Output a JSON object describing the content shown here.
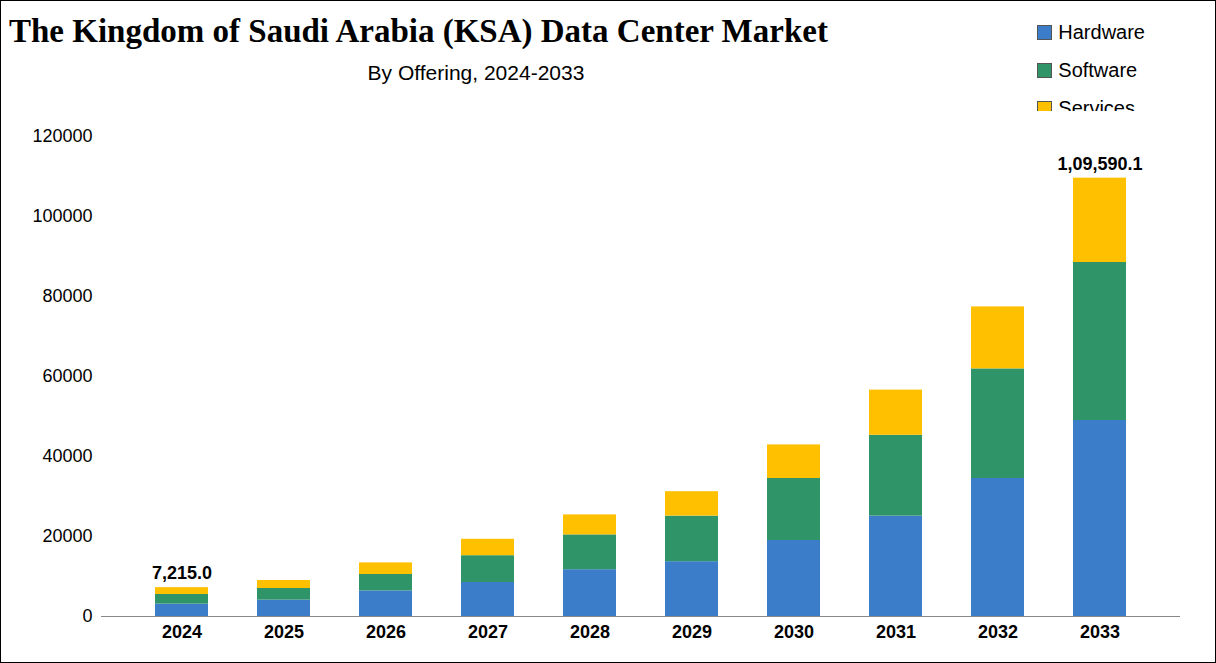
{
  "chart_data": {
    "type": "bar",
    "title": "The Kingdom of Saudi Arabia (KSA) Data Center Market",
    "subtitle": "By Offering, 2024-2033",
    "stacked": true,
    "legend": "top-right",
    "grid": false,
    "categories": [
      "2024",
      "2025",
      "2026",
      "2027",
      "2028",
      "2029",
      "2030",
      "2031",
      "2032",
      "2033"
    ],
    "series": [
      {
        "name": "Hardware",
        "color": "#3b7dc8",
        "values": [
          3100,
          4100,
          6400,
          8500,
          11700,
          13700,
          19000,
          25100,
          34500,
          49000
        ]
      },
      {
        "name": "Software",
        "color": "#2f9467",
        "values": [
          2400,
          2900,
          4100,
          6700,
          8700,
          11400,
          15500,
          20200,
          27400,
          39500
        ]
      },
      {
        "name": "Services",
        "color": "#ffc000",
        "values": [
          1715,
          2000,
          2900,
          4100,
          5000,
          6100,
          8400,
          11300,
          15500,
          21090
        ]
      }
    ],
    "ylim": [
      0,
      120000
    ],
    "yticks": [
      0,
      20000,
      40000,
      60000,
      80000,
      100000,
      120000
    ],
    "annotations": [
      {
        "category": "2024",
        "value": 7215.0,
        "label": "7,215.0"
      },
      {
        "category": "2033",
        "value": 109590.1,
        "label": "1,09,590.1"
      }
    ]
  }
}
